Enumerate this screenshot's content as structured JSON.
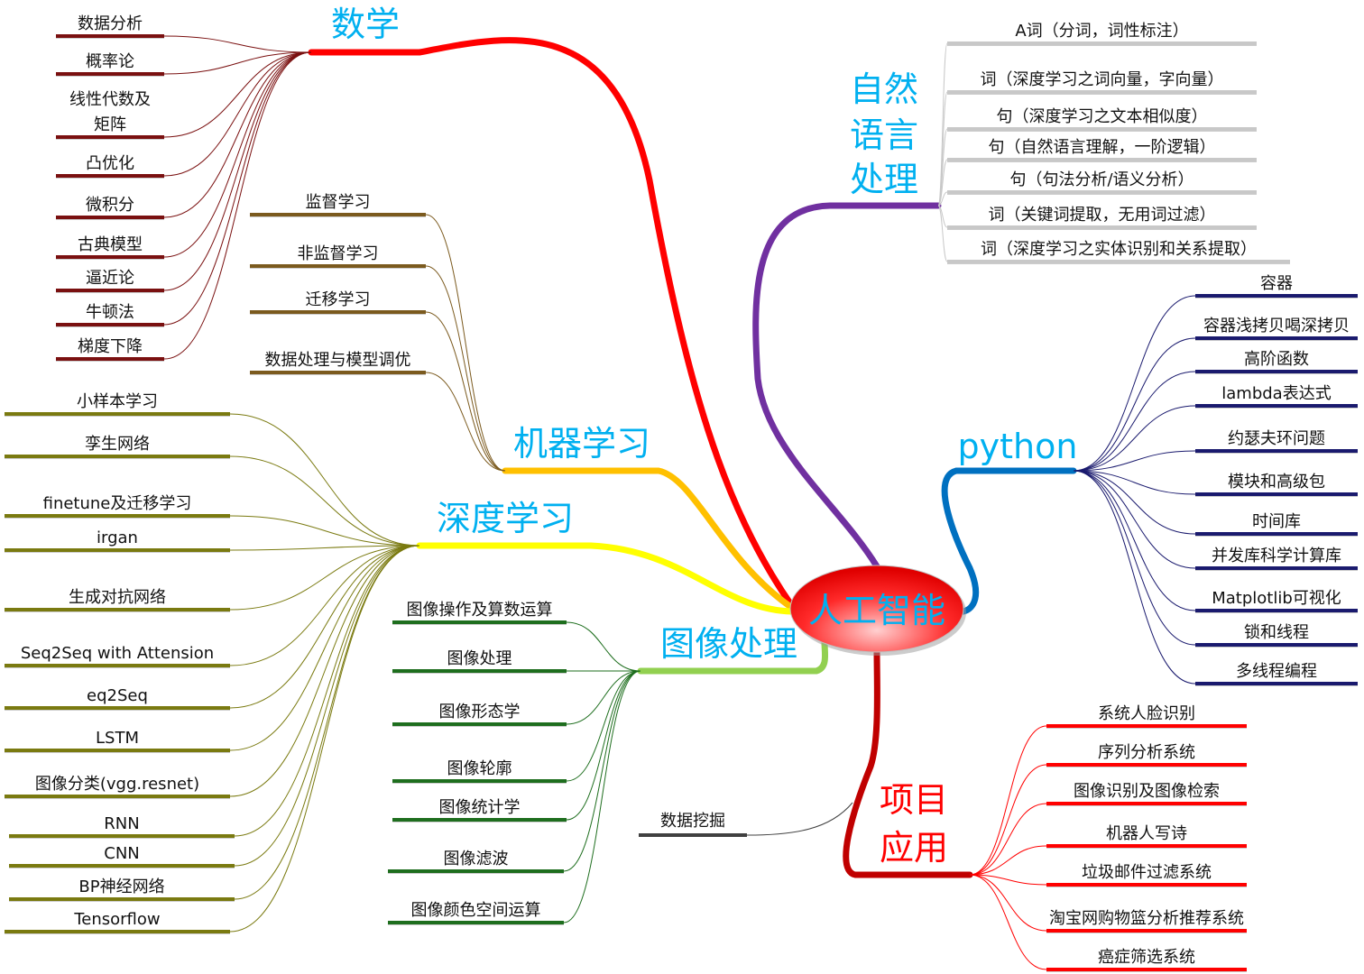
{
  "center": {
    "label": "人工智能",
    "fill_color": "#ff2a2a",
    "text_color": "#00b0f0"
  },
  "branches": [
    {
      "id": "math",
      "label": [
        "数学"
      ],
      "main_color": "#ff0000",
      "leaf_color": "#7a1010",
      "label_color": "#00b0f0",
      "leaves": [
        "数据分析",
        "概率论",
        "线性代数及|矩阵",
        "凸优化",
        "微积分",
        "古典模型",
        "逼近论",
        "牛顿法",
        "梯度下降"
      ]
    },
    {
      "id": "ml",
      "label": [
        "机器学习"
      ],
      "main_color": "#ffc000",
      "leaf_color": "#7b5a1e",
      "label_color": "#00b0f0",
      "leaves": [
        "监督学习",
        "非监督学习",
        "迁移学习",
        "数据处理与模型调优"
      ]
    },
    {
      "id": "dl",
      "label": [
        "深度学习"
      ],
      "main_color": "#ffff00",
      "leaf_color": "#7a7a10",
      "label_color": "#00b0f0",
      "leaves": [
        "小样本学习",
        "孪生网络",
        "finetune及迁移学习",
        "irgan",
        "生成对抗网络",
        "Seq2Seq with Attension",
        "eq2Seq",
        "LSTM",
        "图像分类(vgg.resnet)",
        "RNN",
        "CNN",
        "BP神经网络",
        "Tensorflow"
      ]
    },
    {
      "id": "img",
      "label": [
        "图像处理"
      ],
      "main_color": "#92d050",
      "leaf_color": "#1e6e1e",
      "label_color": "#00b0f0",
      "leaves": [
        "图像操作及算数运算",
        "图像处理",
        "图像形态学",
        "图像轮廓",
        "图像统计学",
        "图像滤波",
        "图像颜色空间运算"
      ]
    },
    {
      "id": "nlp",
      "label": [
        "自然",
        "语言",
        "处理"
      ],
      "main_color": "#7030a0",
      "leaf_color": "#c8c8c8",
      "label_color": "#00b0f0",
      "leaves": [
        "A词（分词，词性标注）",
        "词（深度学习之词向量，字向量）",
        "句（深度学习之文本相似度）",
        "句（自然语言理解，一阶逻辑）",
        "句（句法分析/语义分析）",
        "词（关键词提取，无用词过滤）",
        "词（深度学习之实体识别和关系提取）"
      ]
    },
    {
      "id": "py",
      "label": [
        "python"
      ],
      "main_color": "#0070c0",
      "leaf_color": "#1a1a6e",
      "label_color": "#00b0f0",
      "leaves": [
        "容器",
        "容器浅拷贝喝深拷贝",
        "高阶函数",
        "lambda表达式",
        "约瑟夫环问题",
        "模块和高级包",
        "时间库",
        "并发库科学计算库",
        "Matplotlib可视化",
        "锁和线程",
        "多线程编程"
      ]
    },
    {
      "id": "proj",
      "label": [
        "项目",
        "应用"
      ],
      "main_color": "#c00000",
      "leaf_color": "#ff0000",
      "label_color": "#ff0000",
      "leaves": [
        "系统人脸识别",
        "序列分析系统",
        "图像识别及图像检索",
        "机器人写诗",
        "垃圾邮件过滤系统",
        "淘宝网购物篮分析推荐系统",
        "癌症筛选系统"
      ]
    }
  ],
  "extra_leaf": {
    "label": "数据挖掘",
    "color": "#404040"
  }
}
